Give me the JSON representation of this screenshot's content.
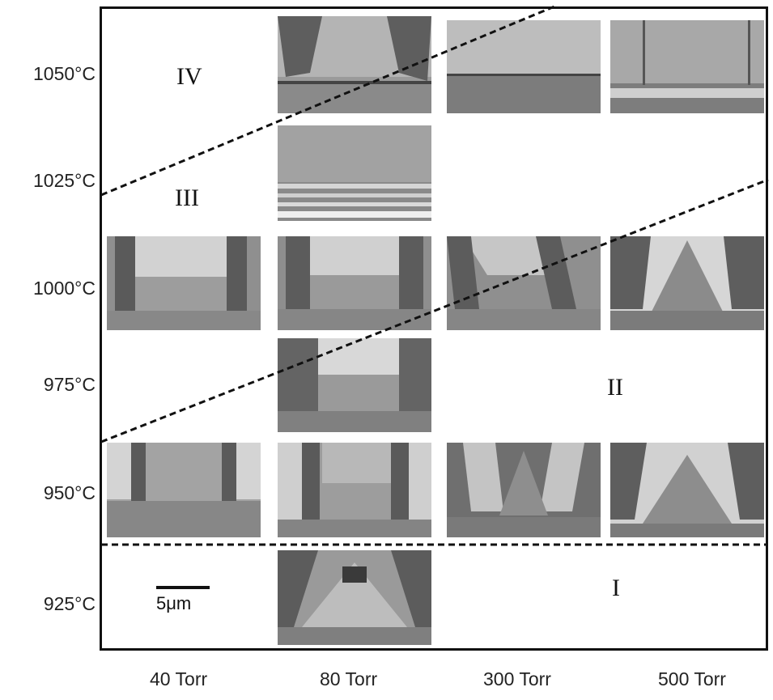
{
  "temperatures": [
    "1050°C",
    "1025°C",
    "1000°C",
    "975°C",
    "950°C",
    "925°C"
  ],
  "pressures": [
    "40 Torr",
    "80 Torr",
    "300 Torr",
    "500 Torr"
  ],
  "regions": {
    "r1": "I",
    "r2": "II",
    "r3": "III",
    "r4": "IV"
  },
  "scale_label": "5μm",
  "colors": {
    "frame": "#111111",
    "boundary": "#111111",
    "sem_dark": "#555555",
    "sem_light": "#d8d8d8"
  }
}
